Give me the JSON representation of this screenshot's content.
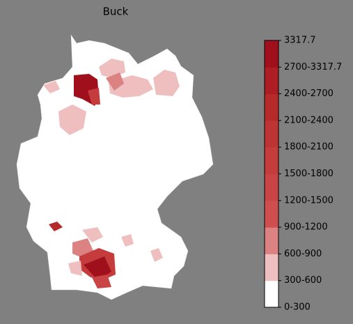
{
  "title": "Buck",
  "colorbar": {
    "ticks": [
      "0-300",
      "300-600",
      "600-900",
      "900-1200",
      "1200-1500",
      "1500-1800",
      "1800-2100",
      "2100-2400",
      "2400-2700",
      "2700-3317.7",
      "3317.7"
    ],
    "colors": [
      "#ffffff",
      "#efbfbf",
      "#dc8282",
      "#cf4e4e",
      "#c94444",
      "#c43c3c",
      "#be3434",
      "#b72a2a",
      "#ad1e24",
      "#a0101c"
    ]
  }
}
